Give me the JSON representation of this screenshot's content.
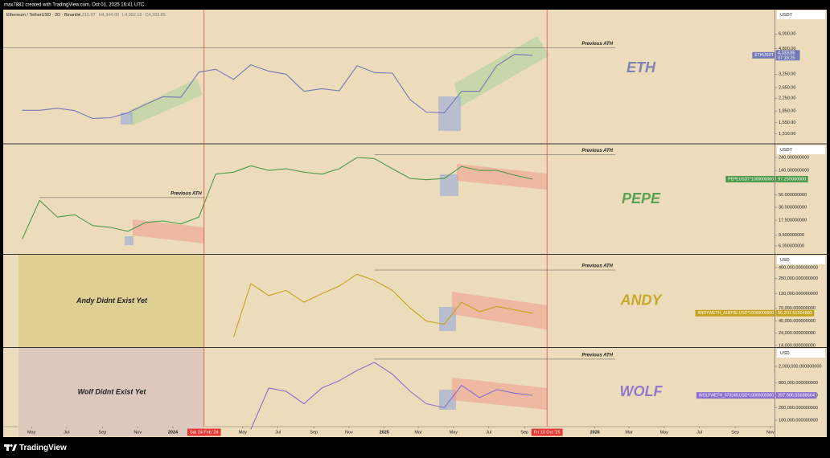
{
  "header": {
    "credit": "max7882 created with TradingView.com, Oct 01, 2025 16:41 UTC",
    "symbol": "Ethereum / TetherUSD · 2D · Binance",
    "ohlc": [
      "O4,215.07",
      "H4,344.00",
      "L4,092.10",
      "C4,333.85"
    ]
  },
  "chart_data": [
    {
      "type": "line",
      "label": "ETH",
      "unit": "USDT",
      "log_scale": true,
      "x": [
        "2023-04",
        "2023-05",
        "2023-06",
        "2023-07",
        "2023-08",
        "2023-09",
        "2023-10",
        "2023-11",
        "2023-12",
        "2024-01",
        "2024-02",
        "2024-03",
        "2024-04",
        "2024-05",
        "2024-06",
        "2024-07",
        "2024-08",
        "2024-09",
        "2024-10",
        "2024-11",
        "2024-12",
        "2025-01",
        "2025-02",
        "2025-03",
        "2025-04",
        "2025-05",
        "2025-06",
        "2025-07",
        "2025-08",
        "2025-09"
      ],
      "series": [
        {
          "name": "ETHUSDT",
          "color": "#7479b8",
          "values": [
            1870,
            1870,
            1930,
            1860,
            1650,
            1670,
            1800,
            2050,
            2300,
            2280,
            3350,
            3500,
            3000,
            3750,
            3400,
            3250,
            2500,
            2600,
            2520,
            3700,
            3330,
            3300,
            2200,
            1820,
            1800,
            2500,
            2500,
            3700,
            4400,
            4333.86
          ]
        }
      ],
      "ylim": [
        1135,
        8700
      ],
      "yticks": [
        {
          "value": 6000,
          "label": "6,000.00"
        },
        {
          "value": 4800,
          "label": "4,800.00"
        },
        {
          "value": 3250,
          "label": "3,250.00"
        },
        {
          "value": 2650,
          "label": "2,650.00"
        },
        {
          "value": 2250,
          "label": "2,250.00"
        },
        {
          "value": 1850,
          "label": "1,850.00"
        },
        {
          "value": 1550,
          "label": "1,550.00"
        },
        {
          "value": 1310,
          "label": "1,310.00"
        }
      ],
      "annotations": [
        {
          "text": "Previous ATH",
          "y": 4870
        }
      ],
      "price_tag": {
        "value": 4333.86,
        "label": "4,333.86",
        "timer": "07:18:25"
      }
    },
    {
      "type": "line",
      "label": "PEPE",
      "unit": "USDT",
      "log_scale": true,
      "x": [
        "2023-04",
        "2023-05",
        "2023-06",
        "2023-07",
        "2023-08",
        "2023-09",
        "2023-10",
        "2023-11",
        "2023-12",
        "2024-01",
        "2024-02",
        "2024-03",
        "2024-04",
        "2024-05",
        "2024-06",
        "2024-07",
        "2024-08",
        "2024-09",
        "2024-10",
        "2024-11",
        "2024-12",
        "2025-01",
        "2025-02",
        "2025-03",
        "2025-04",
        "2025-05",
        "2025-06",
        "2025-07",
        "2025-08",
        "2025-09"
      ],
      "series": [
        {
          "name": "PEPEUSDT*1000000000",
          "color": "#4c9a48",
          "values": [
            8,
            40,
            20,
            22,
            14,
            13,
            11,
            16,
            17,
            15,
            20,
            120,
            130,
            170,
            140,
            150,
            130,
            120,
            150,
            240,
            230,
            150,
            100,
            95,
            100,
            165,
            140,
            140,
            115,
            97.25
          ]
        }
      ],
      "ylim": [
        4.29,
        411
      ],
      "yticks": [
        {
          "value": 240,
          "label": "240.000000000"
        },
        {
          "value": 140,
          "label": "140.000000000"
        },
        {
          "value": 90,
          "label": "90.000000000"
        },
        {
          "value": 50,
          "label": "50.000000000"
        },
        {
          "value": 30,
          "label": "30.000000000"
        },
        {
          "value": 17.5,
          "label": "17.500000000"
        },
        {
          "value": 9.5,
          "label": "9.500000000"
        },
        {
          "value": 6,
          "label": "6.000000000"
        }
      ],
      "annotations": [
        {
          "text": "Previous ATH",
          "y": 270,
          "from": "2024-12"
        },
        {
          "text": "Previous ATH",
          "y": 45,
          "from": "2023-05",
          "to": "2024-02-24"
        }
      ],
      "price_tag": {
        "value": 97.25,
        "label": "97.250000000"
      }
    },
    {
      "type": "line",
      "label": "ANDY",
      "unit": "USD",
      "log_scale": true,
      "note": "Andy Didnt Exist Yet",
      "x": [
        "2024-04",
        "2024-05",
        "2024-06",
        "2024-07",
        "2024-08",
        "2024-09",
        "2024-10",
        "2024-11",
        "2024-12",
        "2025-01",
        "2025-02",
        "2025-03",
        "2025-04",
        "2025-05",
        "2025-06",
        "2025-07",
        "2025-08",
        "2025-09"
      ],
      "series": [
        {
          "name": "ANDYWETH_A1BF0E.USD*10000000000",
          "color": "#c4a21c",
          "values": [
            20000,
            200000,
            120000,
            150000,
            90000,
            130000,
            180000,
            300000,
            230000,
            150000,
            70000,
            40000,
            35000,
            90000,
            60000,
            75000,
            65000,
            56201.51504983
          ]
        }
      ],
      "ylim": [
        13050,
        695000
      ],
      "yticks": [
        {
          "value": 400000,
          "label": "400,000.000000000"
        },
        {
          "value": 250000,
          "label": "250,000.000000000"
        },
        {
          "value": 130000,
          "label": "130,000.000000000"
        },
        {
          "value": 70000,
          "label": "70,000.000000000"
        },
        {
          "value": 40000,
          "label": "40,000.000000000"
        },
        {
          "value": 24000,
          "label": "24,000.000000000"
        },
        {
          "value": 14000,
          "label": "14,000.000000000"
        }
      ],
      "annotations": [
        {
          "text": "Previous ATH",
          "y": 360000,
          "from": "2024-12"
        }
      ],
      "price_tag": {
        "value": 56201.51504983,
        "label": "56,201.51504983"
      }
    },
    {
      "type": "line",
      "label": "WOLF",
      "unit": "USD",
      "log_scale": true,
      "note": "Wolf Didnt Exist Yet",
      "x": [
        "2024-05",
        "2024-06",
        "2024-07",
        "2024-08",
        "2024-09",
        "2024-10",
        "2024-11",
        "2024-12",
        "2025-01",
        "2025-02",
        "2025-03",
        "2025-04",
        "2025-05",
        "2025-06",
        "2025-07",
        "2025-08",
        "2025-09"
      ],
      "series": [
        {
          "name": "WOLFWETH_673249.USD*10000000000",
          "color": "#8a6ed0",
          "values": [
            60000,
            600000,
            500000,
            250000,
            600000,
            900000,
            1600000,
            2500000,
            1300000,
            500000,
            250000,
            200000,
            700000,
            350000,
            550000,
            450000,
            397906.55688564
          ]
        }
      ],
      "ylim": [
        40700,
        5600000
      ],
      "yticks": [
        {
          "value": 2000000,
          "label": "2,000,000.000000000"
        },
        {
          "value": 800000,
          "label": "800,000.000000000"
        },
        {
          "value": 400000,
          "label": "400,000.000000000"
        },
        {
          "value": 200000,
          "label": "200,000.000000000"
        },
        {
          "value": 100000,
          "label": "100,000.000000000"
        }
      ],
      "annotations": [
        {
          "text": "Previous ATH",
          "y": 3000000,
          "from": "2024-12"
        }
      ],
      "price_tag": {
        "value": 397906.55688564,
        "label": "397,906.55688564"
      }
    }
  ],
  "time_axis": {
    "ticks": [
      {
        "value": "2023-05",
        "label": "May"
      },
      {
        "value": "2023-07",
        "label": "Jul"
      },
      {
        "value": "2023-09",
        "label": "Sep"
      },
      {
        "value": "2023-11",
        "label": "Nov"
      },
      {
        "value": "2024-01",
        "label": "2024"
      },
      {
        "value": "2024-05",
        "label": "May"
      },
      {
        "value": "2024-07",
        "label": "Jul"
      },
      {
        "value": "2024-09",
        "label": "Sep"
      },
      {
        "value": "2024-11",
        "label": "Nov"
      },
      {
        "value": "2025-01",
        "label": "2025"
      },
      {
        "value": "2025-03",
        "label": "Mar"
      },
      {
        "value": "2025-05",
        "label": "May"
      },
      {
        "value": "2025-07",
        "label": "Jul"
      },
      {
        "value": "2025-09",
        "label": "Sep"
      },
      {
        "value": "2026-01",
        "label": "2026"
      },
      {
        "value": "2026-03",
        "label": "Mar"
      },
      {
        "value": "2026-05",
        "label": "May"
      },
      {
        "value": "2026-07",
        "label": "Jul"
      },
      {
        "value": "2026-09",
        "label": "Sep"
      },
      {
        "value": "2026-11",
        "label": "Nov"
      }
    ],
    "markers": [
      {
        "value": "2024-02-24",
        "label": "Sat 24 Feb '24"
      },
      {
        "value": "2025-10-10",
        "label": "Fri 10 Oct '25"
      }
    ]
  },
  "footer": {
    "brand": "TradingView"
  }
}
